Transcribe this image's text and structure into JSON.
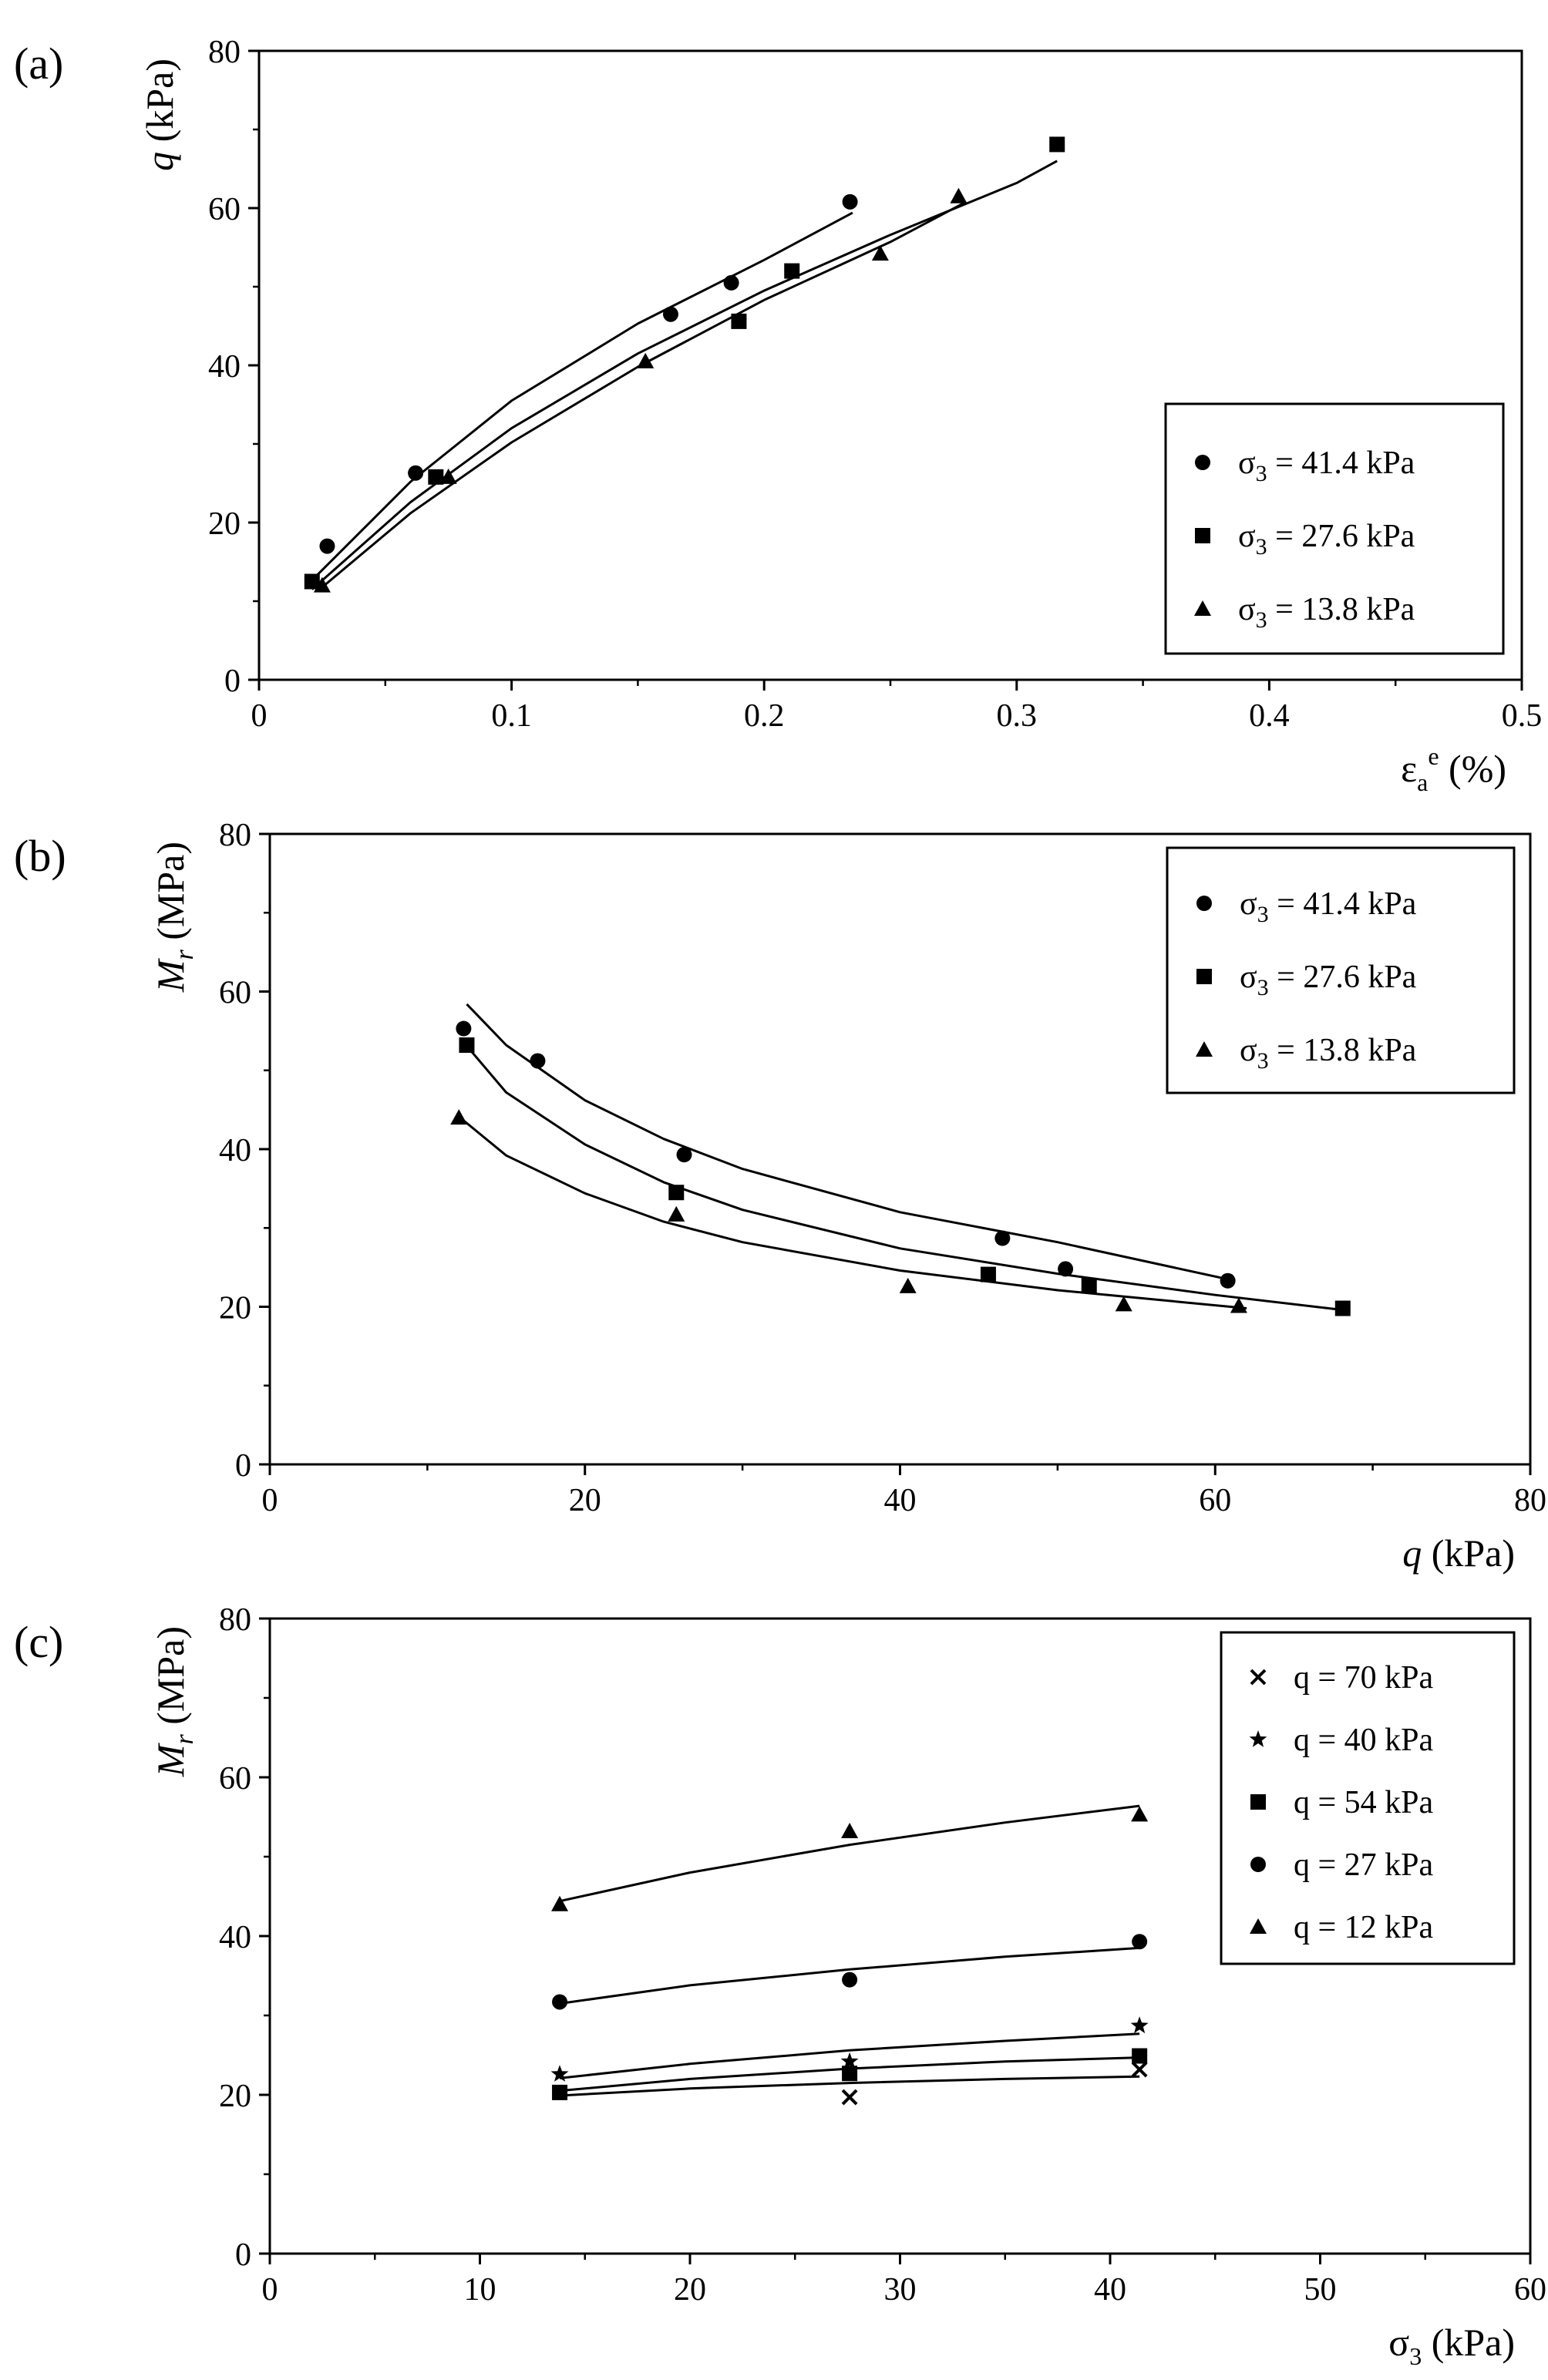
{
  "figure": {
    "background": "#ffffff",
    "ink": "#000000"
  },
  "chart_data": [
    {
      "id": "a",
      "panel_label": "(a)",
      "type": "scatter",
      "xlabel": "εa e (%)",
      "xlabel_parts": {
        "sym": "ε",
        "sub": "a",
        "sup": "e",
        "unit": " (%)"
      },
      "ylabel": "q (kPa)",
      "ylabel_parts": {
        "italic": "q",
        "rest": " (kPa)"
      },
      "xlim": [
        0,
        0.5
      ],
      "ylim": [
        0,
        80
      ],
      "xticks": [
        0,
        0.1,
        0.2,
        0.3,
        0.4,
        0.5
      ],
      "xtick_labels": [
        "0",
        "0.1",
        "0.2",
        "0.3",
        "0.4",
        "0.5"
      ],
      "xminor": [
        0.05,
        0.15,
        0.25,
        0.35,
        0.45
      ],
      "yticks": [
        0,
        20,
        40,
        60,
        80
      ],
      "ytick_labels": [
        "0",
        "20",
        "40",
        "60",
        "80"
      ],
      "yminor": [
        10,
        30,
        50,
        70
      ],
      "legend_position": "bottom-right",
      "series": [
        {
          "name": "σ3 = 41.4 kPa",
          "sym": "σ",
          "sub": "3",
          "rest": " = 41.4 kPa",
          "marker": "circle",
          "x": [
            0.027,
            0.062,
            0.163,
            0.187,
            0.234
          ],
          "y": [
            17.0,
            26.3,
            46.5,
            50.5,
            60.8
          ],
          "fit": {
            "x": [
              0.022,
              0.06,
              0.1,
              0.15,
              0.2,
              0.235
            ],
            "y": [
              13.0,
              25.2,
              35.5,
              45.3,
              53.4,
              59.4
            ]
          }
        },
        {
          "name": "σ3 = 27.6 kPa",
          "sym": "σ",
          "sub": "3",
          "rest": " = 27.6 kPa",
          "marker": "square",
          "x": [
            0.021,
            0.07,
            0.19,
            0.211,
            0.316
          ],
          "y": [
            12.5,
            25.8,
            45.6,
            52.0,
            68.1
          ],
          "fit": {
            "x": [
              0.021,
              0.06,
              0.1,
              0.15,
              0.2,
              0.25,
              0.3,
              0.316
            ],
            "y": [
              11.5,
              22.6,
              32.0,
              41.5,
              49.5,
              56.6,
              63.2,
              66.0
            ]
          }
        },
        {
          "name": "σ3 = 13.8 kPa",
          "sym": "σ",
          "sub": "3",
          "rest": " = 13.8 kPa",
          "marker": "triangle",
          "x": [
            0.025,
            0.075,
            0.153,
            0.246,
            0.277
          ],
          "y": [
            12.0,
            25.8,
            40.5,
            54.2,
            61.5
          ],
          "fit": {
            "x": [
              0.024,
              0.06,
              0.1,
              0.15,
              0.2,
              0.25,
              0.28
            ],
            "y": [
              11.5,
              21.2,
              30.2,
              39.8,
              48.3,
              55.7,
              60.8
            ]
          }
        }
      ]
    },
    {
      "id": "b",
      "panel_label": "(b)",
      "type": "scatter",
      "xlabel": "q (kPa)",
      "xlabel_parts": {
        "italic": "q",
        "rest": " (kPa)"
      },
      "ylabel": "Mr (MPa)",
      "ylabel_parts": {
        "italic": "M",
        "sub": "r",
        "rest": " (MPa)"
      },
      "xlim": [
        0,
        80
      ],
      "ylim": [
        0,
        80
      ],
      "xticks": [
        0,
        20,
        40,
        60,
        80
      ],
      "xtick_labels": [
        "0",
        "20",
        "40",
        "60",
        "80"
      ],
      "xminor": [
        10,
        30,
        50,
        70
      ],
      "yticks": [
        0,
        20,
        40,
        60,
        80
      ],
      "ytick_labels": [
        "0",
        "20",
        "40",
        "60",
        "80"
      ],
      "yminor": [
        10,
        30,
        50,
        70
      ],
      "legend_position": "top-right",
      "series": [
        {
          "name": "σ3 = 41.4 kPa",
          "sym": "σ",
          "sub": "3",
          "rest": " = 41.4 kPa",
          "marker": "circle",
          "x": [
            12.3,
            17.0,
            26.3,
            46.5,
            50.5,
            60.8
          ],
          "y": [
            55.3,
            51.2,
            39.3,
            28.7,
            24.8,
            23.3
          ],
          "fit": {
            "x": [
              12.5,
              15,
              20,
              25,
              30,
              40,
              50,
              61
            ],
            "y": [
              58.4,
              53.2,
              46.2,
              41.3,
              37.5,
              32.0,
              28.2,
              23.4
            ]
          }
        },
        {
          "name": "σ3 = 27.6 kPa",
          "sym": "σ",
          "sub": "3",
          "rest": " = 27.6 kPa",
          "marker": "square",
          "x": [
            12.5,
            25.8,
            45.6,
            52.0,
            68.1
          ],
          "y": [
            53.2,
            34.5,
            24.1,
            22.7,
            19.8
          ],
          "fit": {
            "x": [
              12.5,
              15,
              20,
              25,
              30,
              40,
              50,
              60,
              68.5
            ],
            "y": [
              53.1,
              47.2,
              40.6,
              35.8,
              32.3,
              27.4,
              24.2,
              21.5,
              19.5
            ]
          }
        },
        {
          "name": "σ3 = 13.8 kPa",
          "sym": "σ",
          "sub": "3",
          "rest": " = 13.8 kPa",
          "marker": "triangle",
          "x": [
            12.0,
            25.8,
            40.5,
            54.2,
            61.5
          ],
          "y": [
            44.0,
            31.7,
            22.6,
            20.3,
            20.1
          ],
          "fit": {
            "x": [
              12.2,
              15,
              20,
              25,
              30,
              40,
              50,
              62
            ],
            "y": [
              43.8,
              39.2,
              34.4,
              30.8,
              28.2,
              24.6,
              22.1,
              19.8
            ]
          }
        }
      ]
    },
    {
      "id": "c",
      "panel_label": "(c)",
      "type": "scatter",
      "xlabel": "σ3 (kPa)",
      "xlabel_parts": {
        "sym": "σ",
        "sub": "3",
        "rest": " (kPa)"
      },
      "ylabel": "Mr (MPa)",
      "ylabel_parts": {
        "italic": "M",
        "sub": "r",
        "rest": " (MPa)"
      },
      "xlim": [
        0,
        60
      ],
      "ylim": [
        0,
        80
      ],
      "xticks": [
        0,
        10,
        20,
        30,
        40,
        50,
        60
      ],
      "xtick_labels": [
        "0",
        "10",
        "20",
        "30",
        "40",
        "50",
        "60"
      ],
      "xminor": [
        5,
        15,
        25,
        35,
        45,
        55
      ],
      "yticks": [
        0,
        20,
        40,
        60,
        80
      ],
      "ytick_labels": [
        "0",
        "20",
        "40",
        "60",
        "80"
      ],
      "yminor": [
        10,
        30,
        50,
        70
      ],
      "legend_position": "top-right",
      "series": [
        {
          "name": "q = 70 kPa",
          "marker": "cross",
          "x": [
            27.6,
            41.4
          ],
          "y": [
            19.7,
            23.2
          ],
          "fit": {
            "x": [
              13.8,
              20,
              27.6,
              35,
              41.4
            ],
            "y": [
              19.9,
              20.8,
              21.5,
              22.0,
              22.3
            ]
          }
        },
        {
          "name": "q = 40 kPa",
          "marker": "star",
          "x": [
            13.8,
            27.6,
            41.4
          ],
          "y": [
            22.6,
            24.2,
            28.7
          ],
          "fit": {
            "x": [
              13.8,
              20,
              27.6,
              35,
              41.4
            ],
            "y": [
              22.1,
              23.9,
              25.6,
              26.8,
              27.7
            ]
          }
        },
        {
          "name": "q = 54 kPa",
          "marker": "square",
          "x": [
            13.8,
            27.6,
            41.4
          ],
          "y": [
            20.3,
            22.7,
            24.9
          ],
          "fit": {
            "x": [
              13.8,
              20,
              27.6,
              35,
              41.4
            ],
            "y": [
              20.5,
              22.0,
              23.3,
              24.2,
              24.7
            ]
          }
        },
        {
          "name": "q = 27 kPa",
          "marker": "circle",
          "x": [
            13.8,
            27.6,
            41.4
          ],
          "y": [
            31.7,
            34.5,
            39.3
          ],
          "fit": {
            "x": [
              13.8,
              20,
              27.6,
              35,
              41.4
            ],
            "y": [
              31.5,
              33.8,
              35.8,
              37.4,
              38.5
            ]
          }
        },
        {
          "name": "q = 12 kPa",
          "marker": "triangle",
          "x": [
            13.8,
            27.6,
            41.4
          ],
          "y": [
            44.0,
            53.2,
            55.3
          ],
          "fit": {
            "x": [
              13.8,
              20,
              27.6,
              35,
              41.4
            ],
            "y": [
              44.4,
              48.0,
              51.5,
              54.3,
              56.4
            ]
          }
        }
      ]
    }
  ]
}
